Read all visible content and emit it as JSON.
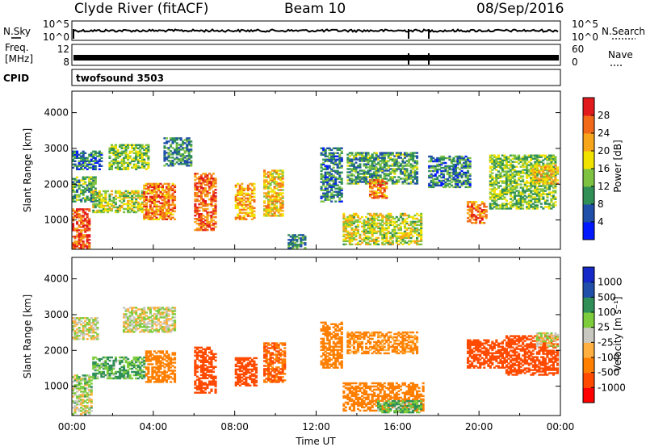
{
  "header": {
    "station": "Clyde River (fitACF)",
    "beam": "Beam 10",
    "date": "08/Sep/2016"
  },
  "summary": {
    "left_labels": {
      "nsky": "N.Sky",
      "freq_line1": "Freq.",
      "freq_line2": "[MHz]",
      "cpid": "CPID"
    },
    "right_labels": {
      "nsearch": "N.Search",
      "nave": "Nave"
    },
    "nsky_ticks": {
      "top": "10^5",
      "bottom": "10^0"
    },
    "freq_ticks": {
      "top": "12",
      "bottom": "8"
    },
    "nsearch_ticks": {
      "top": "10^5",
      "bottom": "10^0"
    },
    "nave_ticks": {
      "top": "60",
      "bottom": "0"
    },
    "cpid_text": "twofsound 3503"
  },
  "colors": {
    "power": [
      "#0019ff",
      "#1f4fa8",
      "#2f8f57",
      "#7dc241",
      "#f2e200",
      "#f7a51b",
      "#f26a17",
      "#e31a1c"
    ],
    "velocity": [
      "#ff0000",
      "#ff4a00",
      "#ff7f00",
      "#ffb040",
      "#c8c8c0",
      "#7ccc3c",
      "#2f8f57",
      "#1f4fa8",
      "#1429c8"
    ]
  },
  "chart_data": [
    {
      "type": "heatmap",
      "name": "power",
      "ylabel": "Slant Range [km]",
      "xlabel": "",
      "x_ticks": [
        "00:00",
        "04:00",
        "08:00",
        "12:00",
        "16:00",
        "20:00",
        "00:00"
      ],
      "xlim_hours": [
        0,
        24
      ],
      "ylim": [
        180,
        4600
      ],
      "y_ticks": [
        1000,
        2000,
        3000,
        4000
      ],
      "colorbar": {
        "label": "Power [dB]",
        "ticks": [
          "4",
          "8",
          "12",
          "16",
          "20",
          "24",
          "28"
        ]
      },
      "echo_regions": [
        {
          "t0": 0.0,
          "t1": 0.8,
          "r0": 200,
          "r1": 1300,
          "v": 27
        },
        {
          "t0": 0.0,
          "t1": 1.2,
          "r0": 1500,
          "r1": 2200,
          "v": 12
        },
        {
          "t0": 0.0,
          "t1": 1.5,
          "r0": 2400,
          "r1": 2900,
          "v": 8
        },
        {
          "t0": 1.0,
          "t1": 3.5,
          "r0": 1200,
          "r1": 1800,
          "v": 16
        },
        {
          "t0": 1.8,
          "t1": 3.8,
          "r0": 2400,
          "r1": 3100,
          "v": 14
        },
        {
          "t0": 3.5,
          "t1": 5.0,
          "r0": 1000,
          "r1": 2000,
          "v": 24
        },
        {
          "t0": 4.5,
          "t1": 5.8,
          "r0": 2500,
          "r1": 3300,
          "v": 10
        },
        {
          "t0": 6.0,
          "t1": 7.0,
          "r0": 700,
          "r1": 2300,
          "v": 26
        },
        {
          "t0": 8.0,
          "t1": 8.9,
          "r0": 1000,
          "r1": 2000,
          "v": 22
        },
        {
          "t0": 9.4,
          "t1": 10.3,
          "r0": 1100,
          "r1": 2400,
          "v": 20
        },
        {
          "t0": 10.6,
          "t1": 11.4,
          "r0": 200,
          "r1": 600,
          "v": 10
        },
        {
          "t0": 12.2,
          "t1": 13.2,
          "r0": 1500,
          "r1": 3000,
          "v": 9
        },
        {
          "t0": 13.3,
          "t1": 17.2,
          "r0": 300,
          "r1": 1200,
          "v": 17
        },
        {
          "t0": 13.5,
          "t1": 17.0,
          "r0": 2000,
          "r1": 2900,
          "v": 11
        },
        {
          "t0": 14.6,
          "t1": 15.4,
          "r0": 1600,
          "r1": 2100,
          "v": 24
        },
        {
          "t0": 17.5,
          "t1": 19.6,
          "r0": 1900,
          "r1": 2800,
          "v": 9
        },
        {
          "t0": 19.4,
          "t1": 20.4,
          "r0": 900,
          "r1": 1500,
          "v": 25
        },
        {
          "t0": 20.5,
          "t1": 23.8,
          "r0": 1300,
          "r1": 2800,
          "v": 14
        },
        {
          "t0": 22.6,
          "t1": 23.9,
          "r0": 2000,
          "r1": 2500,
          "v": 20
        }
      ]
    },
    {
      "type": "heatmap",
      "name": "velocity",
      "ylabel": "Slant Range [km]",
      "xlabel": "Time UT",
      "x_ticks": [
        "00:00",
        "04:00",
        "08:00",
        "12:00",
        "16:00",
        "20:00",
        "00:00"
      ],
      "xlim_hours": [
        0,
        24
      ],
      "ylim": [
        180,
        4600
      ],
      "y_ticks": [
        1000,
        2000,
        3000,
        4000
      ],
      "colorbar": {
        "label": "Velocity [m s⁻¹]",
        "ticks": [
          "1000",
          "500",
          "100",
          "25",
          "-25",
          "-100",
          "-500",
          "-1000"
        ]
      },
      "echo_regions": [
        {
          "t0": 0.0,
          "t1": 0.9,
          "r0": 200,
          "r1": 1300,
          "v": 25
        },
        {
          "t0": 0.0,
          "t1": 1.3,
          "r0": 2300,
          "r1": 2900,
          "v": 0
        },
        {
          "t0": 1.0,
          "t1": 3.6,
          "r0": 1200,
          "r1": 1800,
          "v": 100
        },
        {
          "t0": 2.5,
          "t1": 5.0,
          "r0": 2500,
          "r1": 3200,
          "v": 0
        },
        {
          "t0": 3.6,
          "t1": 5.0,
          "r0": 1100,
          "r1": 2000,
          "v": -300
        },
        {
          "t0": 6.0,
          "t1": 7.0,
          "r0": 800,
          "r1": 2100,
          "v": -700
        },
        {
          "t0": 8.0,
          "t1": 9.0,
          "r0": 1000,
          "r1": 1800,
          "v": -700
        },
        {
          "t0": 9.4,
          "t1": 10.4,
          "r0": 1100,
          "r1": 2200,
          "v": -500
        },
        {
          "t0": 12.2,
          "t1": 13.2,
          "r0": 1500,
          "r1": 2800,
          "v": -300
        },
        {
          "t0": 13.3,
          "t1": 17.3,
          "r0": 300,
          "r1": 1100,
          "v": -300
        },
        {
          "t0": 13.5,
          "t1": 17.0,
          "r0": 1900,
          "r1": 2500,
          "v": -150
        },
        {
          "t0": 15.0,
          "t1": 17.2,
          "r0": 250,
          "r1": 600,
          "v": 100
        },
        {
          "t0": 19.4,
          "t1": 21.3,
          "r0": 1500,
          "r1": 2300,
          "v": -900
        },
        {
          "t0": 21.3,
          "t1": 23.9,
          "r0": 1300,
          "r1": 2400,
          "v": -600
        },
        {
          "t0": 22.8,
          "t1": 23.9,
          "r0": 2100,
          "r1": 2500,
          "v": 0
        }
      ]
    }
  ]
}
